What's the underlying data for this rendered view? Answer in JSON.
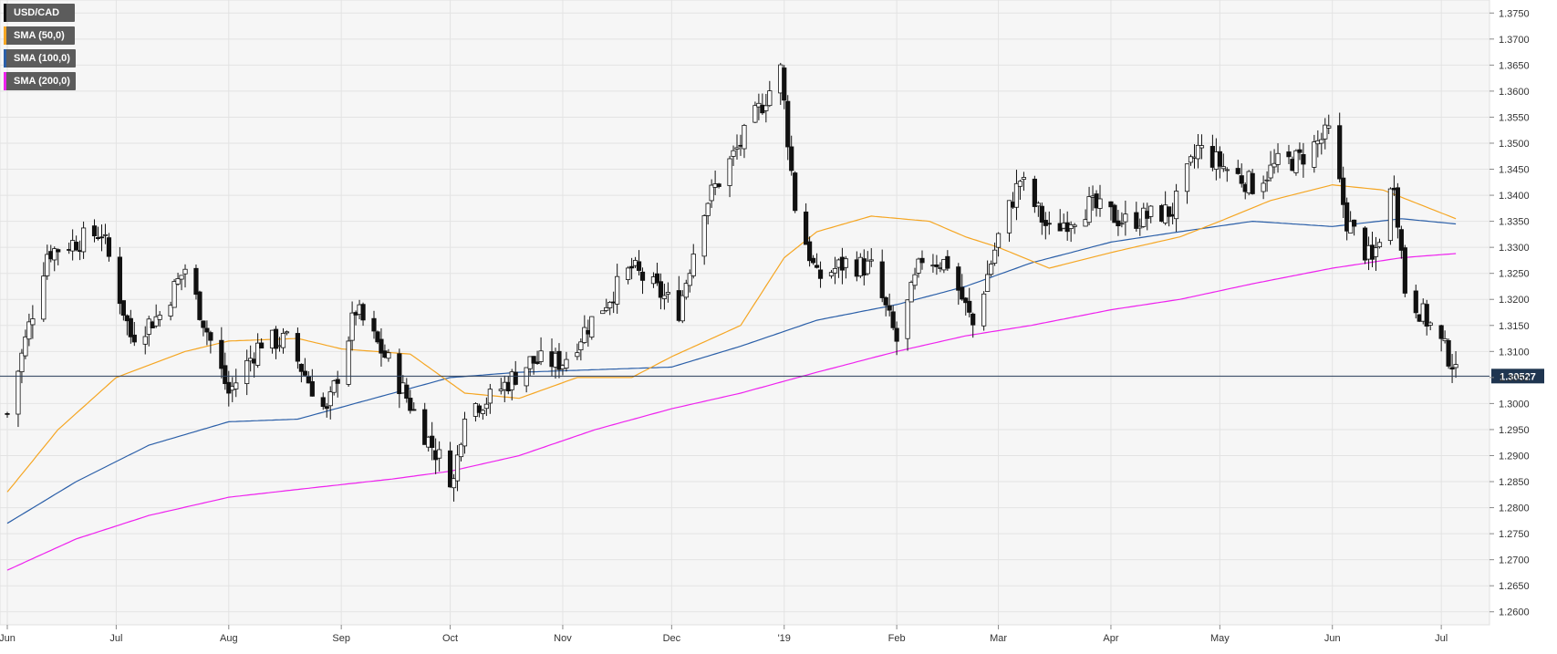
{
  "chart_data": {
    "type": "candlestick",
    "symbol": "USD/CAD",
    "last_price_label": "1.30527",
    "last_price": 1.30527,
    "y_axis": {
      "min": 1.2575,
      "max": 1.3775,
      "ticks": [
        "1.2600",
        "1.2650",
        "1.2700",
        "1.2750",
        "1.2800",
        "1.2850",
        "1.2900",
        "1.2950",
        "1.3000",
        "1.3050",
        "1.3100",
        "1.3150",
        "1.3200",
        "1.3250",
        "1.3300",
        "1.3350",
        "1.3400",
        "1.3450",
        "1.3500",
        "1.3550",
        "1.3600",
        "1.3650",
        "1.3700",
        "1.3750"
      ],
      "side": "right"
    },
    "x_axis": {
      "labels": [
        "Jun",
        "Jul",
        "Aug",
        "Sep",
        "Oct",
        "Nov",
        "Dec",
        "'19",
        "Feb",
        "Mar",
        "Apr",
        "May",
        "Jun",
        "Jul"
      ],
      "date_positions": [
        "2018-06-01",
        "2018-07-01",
        "2018-08-01",
        "2018-09-01",
        "2018-10-01",
        "2018-11-01",
        "2018-12-01",
        "2019-01-01",
        "2019-02-01",
        "2019-03-01",
        "2019-04-01",
        "2019-05-01",
        "2019-06-01",
        "2019-07-01"
      ]
    },
    "grid": true,
    "legend_position": "top-left",
    "series": [
      {
        "name": "USD/CAD",
        "style": "candlestick"
      },
      {
        "name": "SMA (50,0)",
        "color": "#f5a623"
      },
      {
        "name": "SMA (100,0)",
        "color": "#2b5fa8"
      },
      {
        "name": "SMA (200,0)",
        "color": "#ee22ee"
      }
    ],
    "price_anchors": {
      "dates": [
        "2018-06-01",
        "2018-06-12",
        "2018-06-27",
        "2018-07-05",
        "2018-07-13",
        "2018-07-20",
        "2018-08-01",
        "2018-08-10",
        "2018-08-17",
        "2018-08-28",
        "2018-09-05",
        "2018-09-14",
        "2018-09-25",
        "2018-10-02",
        "2018-10-05",
        "2018-10-12",
        "2018-10-23",
        "2018-11-01",
        "2018-11-09",
        "2018-11-20",
        "2018-12-03",
        "2018-12-10",
        "2018-12-20",
        "2018-12-31",
        "2019-01-04",
        "2019-01-10",
        "2019-01-18",
        "2019-01-25",
        "2019-02-01",
        "2019-02-08",
        "2019-02-15",
        "2019-02-22",
        "2019-03-01",
        "2019-03-07",
        "2019-03-15",
        "2019-03-26",
        "2019-04-05",
        "2019-04-18",
        "2019-04-25",
        "2019-05-03",
        "2019-05-10",
        "2019-05-17",
        "2019-05-23",
        "2019-05-31",
        "2019-06-05",
        "2019-06-12",
        "2019-06-18",
        "2019-06-21",
        "2019-06-28",
        "2019-07-04",
        "2019-07-05"
      ],
      "close": [
        1.298,
        1.329,
        1.333,
        1.313,
        1.317,
        1.326,
        1.302,
        1.312,
        1.312,
        1.298,
        1.318,
        1.308,
        1.293,
        1.285,
        1.299,
        1.301,
        1.308,
        1.308,
        1.316,
        1.326,
        1.318,
        1.338,
        1.35,
        1.364,
        1.338,
        1.324,
        1.327,
        1.326,
        1.312,
        1.328,
        1.327,
        1.315,
        1.332,
        1.343,
        1.333,
        1.338,
        1.335,
        1.337,
        1.349,
        1.345,
        1.342,
        1.346,
        1.347,
        1.352,
        1.335,
        1.327,
        1.343,
        1.322,
        1.315,
        1.308,
        1.3053
      ]
    },
    "sma_anchors": {
      "sma50": {
        "dates": [
          "2018-06-01",
          "2018-06-15",
          "2018-07-01",
          "2018-07-20",
          "2018-08-01",
          "2018-08-20",
          "2018-09-01",
          "2018-09-20",
          "2018-10-05",
          "2018-10-20",
          "2018-11-05",
          "2018-11-20",
          "2018-12-01",
          "2018-12-20",
          "2019-01-01",
          "2019-01-10",
          "2019-01-25",
          "2019-02-10",
          "2019-02-20",
          "2019-03-01",
          "2019-03-15",
          "2019-04-01",
          "2019-04-20",
          "2019-05-01",
          "2019-05-15",
          "2019-06-01",
          "2019-06-15",
          "2019-07-05"
        ],
        "values": [
          1.283,
          1.295,
          1.305,
          1.31,
          1.312,
          1.3125,
          1.3105,
          1.3095,
          1.302,
          1.301,
          1.305,
          1.305,
          1.309,
          1.315,
          1.328,
          1.333,
          1.336,
          1.335,
          1.332,
          1.33,
          1.326,
          1.329,
          1.332,
          1.335,
          1.339,
          1.342,
          1.341,
          1.3355
        ]
      },
      "sma100": {
        "dates": [
          "2018-06-01",
          "2018-06-20",
          "2018-07-10",
          "2018-08-01",
          "2018-08-20",
          "2018-09-10",
          "2018-10-01",
          "2018-10-20",
          "2018-11-10",
          "2018-12-01",
          "2018-12-20",
          "2019-01-10",
          "2019-02-01",
          "2019-02-20",
          "2019-03-10",
          "2019-04-01",
          "2019-04-20",
          "2019-05-10",
          "2019-06-01",
          "2019-06-20",
          "2019-07-05"
        ],
        "values": [
          1.277,
          1.285,
          1.292,
          1.2965,
          1.297,
          1.301,
          1.305,
          1.306,
          1.3065,
          1.307,
          1.311,
          1.316,
          1.319,
          1.3225,
          1.327,
          1.331,
          1.333,
          1.335,
          1.334,
          1.3355,
          1.3345
        ]
      },
      "sma200": {
        "dates": [
          "2018-06-01",
          "2018-06-20",
          "2018-07-10",
          "2018-08-01",
          "2018-08-20",
          "2018-09-15",
          "2018-10-01",
          "2018-10-20",
          "2018-11-10",
          "2018-12-01",
          "2018-12-20",
          "2019-01-10",
          "2019-02-01",
          "2019-02-20",
          "2019-03-10",
          "2019-04-01",
          "2019-04-20",
          "2019-05-10",
          "2019-06-01",
          "2019-06-20",
          "2019-07-05"
        ],
        "values": [
          1.268,
          1.274,
          1.2785,
          1.282,
          1.2835,
          1.2855,
          1.287,
          1.29,
          1.295,
          1.299,
          1.302,
          1.306,
          1.31,
          1.313,
          1.315,
          1.318,
          1.32,
          1.323,
          1.326,
          1.328,
          1.3288
        ]
      }
    }
  }
}
